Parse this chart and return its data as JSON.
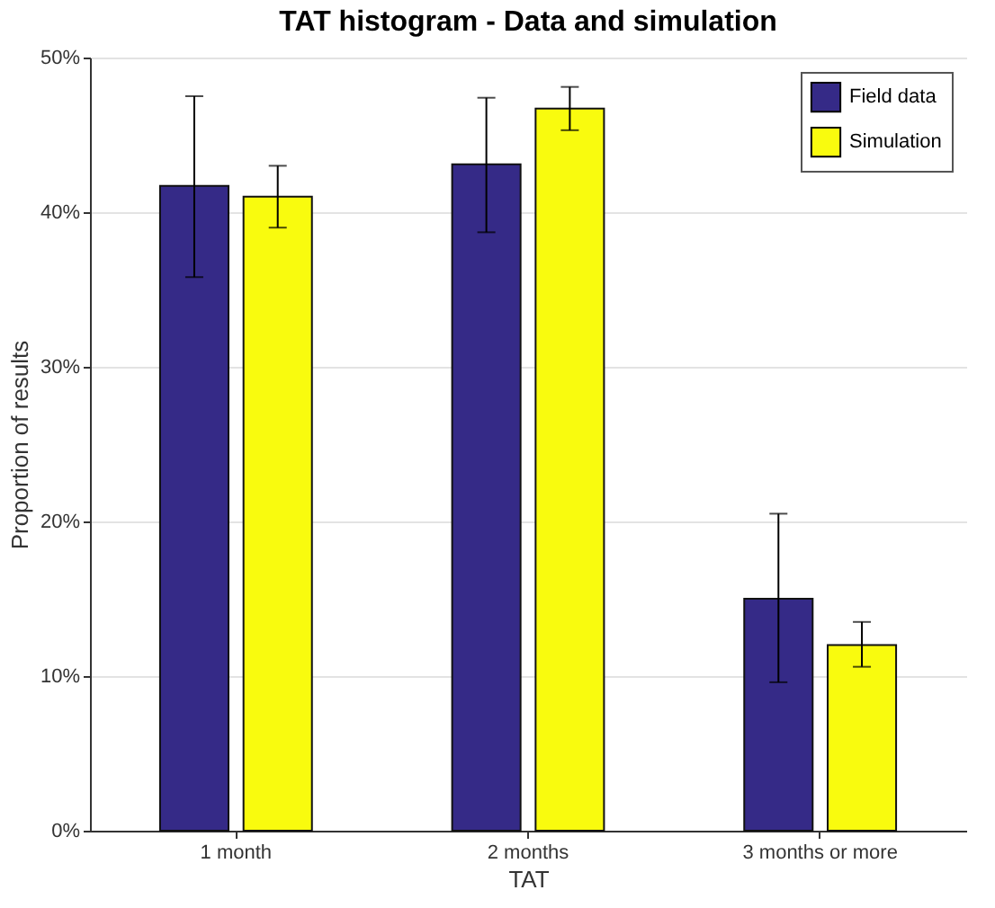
{
  "chart_data": {
    "type": "bar",
    "title": "TAT histogram - Data and simulation",
    "xlabel": "TAT",
    "ylabel": "Proportion of results",
    "categories": [
      "1 month",
      "2 months",
      "3 months or more"
    ],
    "series": [
      {
        "name": "Field data",
        "color": "#352a87",
        "values": [
          41.7,
          43.1,
          15.0
        ],
        "errors": [
          [
            35.8,
            47.5
          ],
          [
            38.7,
            47.4
          ],
          [
            9.6,
            20.5
          ]
        ]
      },
      {
        "name": "Simulation",
        "color": "#f9fb0e",
        "values": [
          41.0,
          46.7,
          12.0
        ],
        "errors": [
          [
            39.0,
            43.0
          ],
          [
            45.3,
            48.1
          ],
          [
            10.6,
            13.5
          ]
        ]
      }
    ],
    "ylim": [
      0,
      50
    ],
    "yticks": [
      {
        "value": 0,
        "label": "0%"
      },
      {
        "value": 10,
        "label": "10%"
      },
      {
        "value": 20,
        "label": "20%"
      },
      {
        "value": 30,
        "label": "30%"
      },
      {
        "value": 40,
        "label": "40%"
      },
      {
        "value": 50,
        "label": "50%"
      }
    ],
    "grid": "y",
    "legend": "top right"
  }
}
